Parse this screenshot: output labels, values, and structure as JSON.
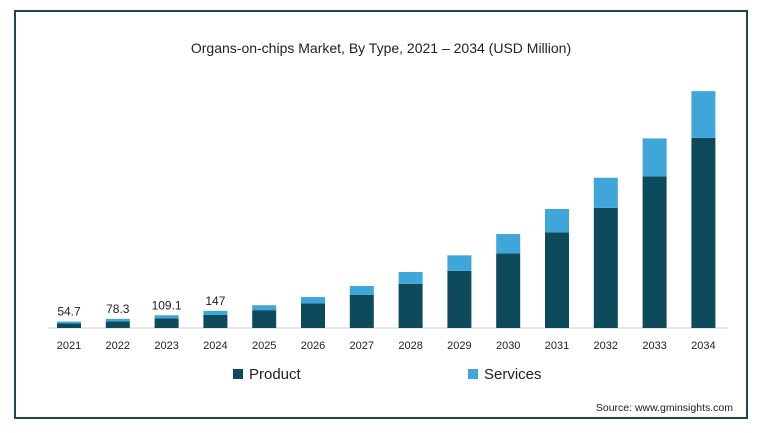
{
  "chart_data": {
    "type": "bar",
    "stacked": true,
    "title": "Organs-on-chips Market, By Type, 2021 – 2034 (USD Million)",
    "xlabel": "",
    "ylabel": "",
    "categories": [
      "2021",
      "2022",
      "2023",
      "2024",
      "2025",
      "2026",
      "2027",
      "2028",
      "2029",
      "2030",
      "2031",
      "2032",
      "2033",
      "2034"
    ],
    "series": [
      {
        "name": "Product",
        "color": "#0d4a5c",
        "values": [
          40,
          57,
          82,
          112,
          153,
          211,
          285,
          378,
          490,
          640,
          820,
          1030,
          1300,
          1630
        ]
      },
      {
        "name": "Services",
        "color": "#3ea6d9",
        "values": [
          14.7,
          21.3,
          27.1,
          35,
          42,
          55,
          75,
          102,
          133,
          165,
          200,
          258,
          325,
          400
        ]
      }
    ],
    "data_labels": [
      "54.7",
      "78.3",
      "109.1",
      "147"
    ],
    "ylim": [
      0,
      2100
    ],
    "grid": false,
    "legend_position": "bottom"
  },
  "source": "Source: www.gminsights.com"
}
